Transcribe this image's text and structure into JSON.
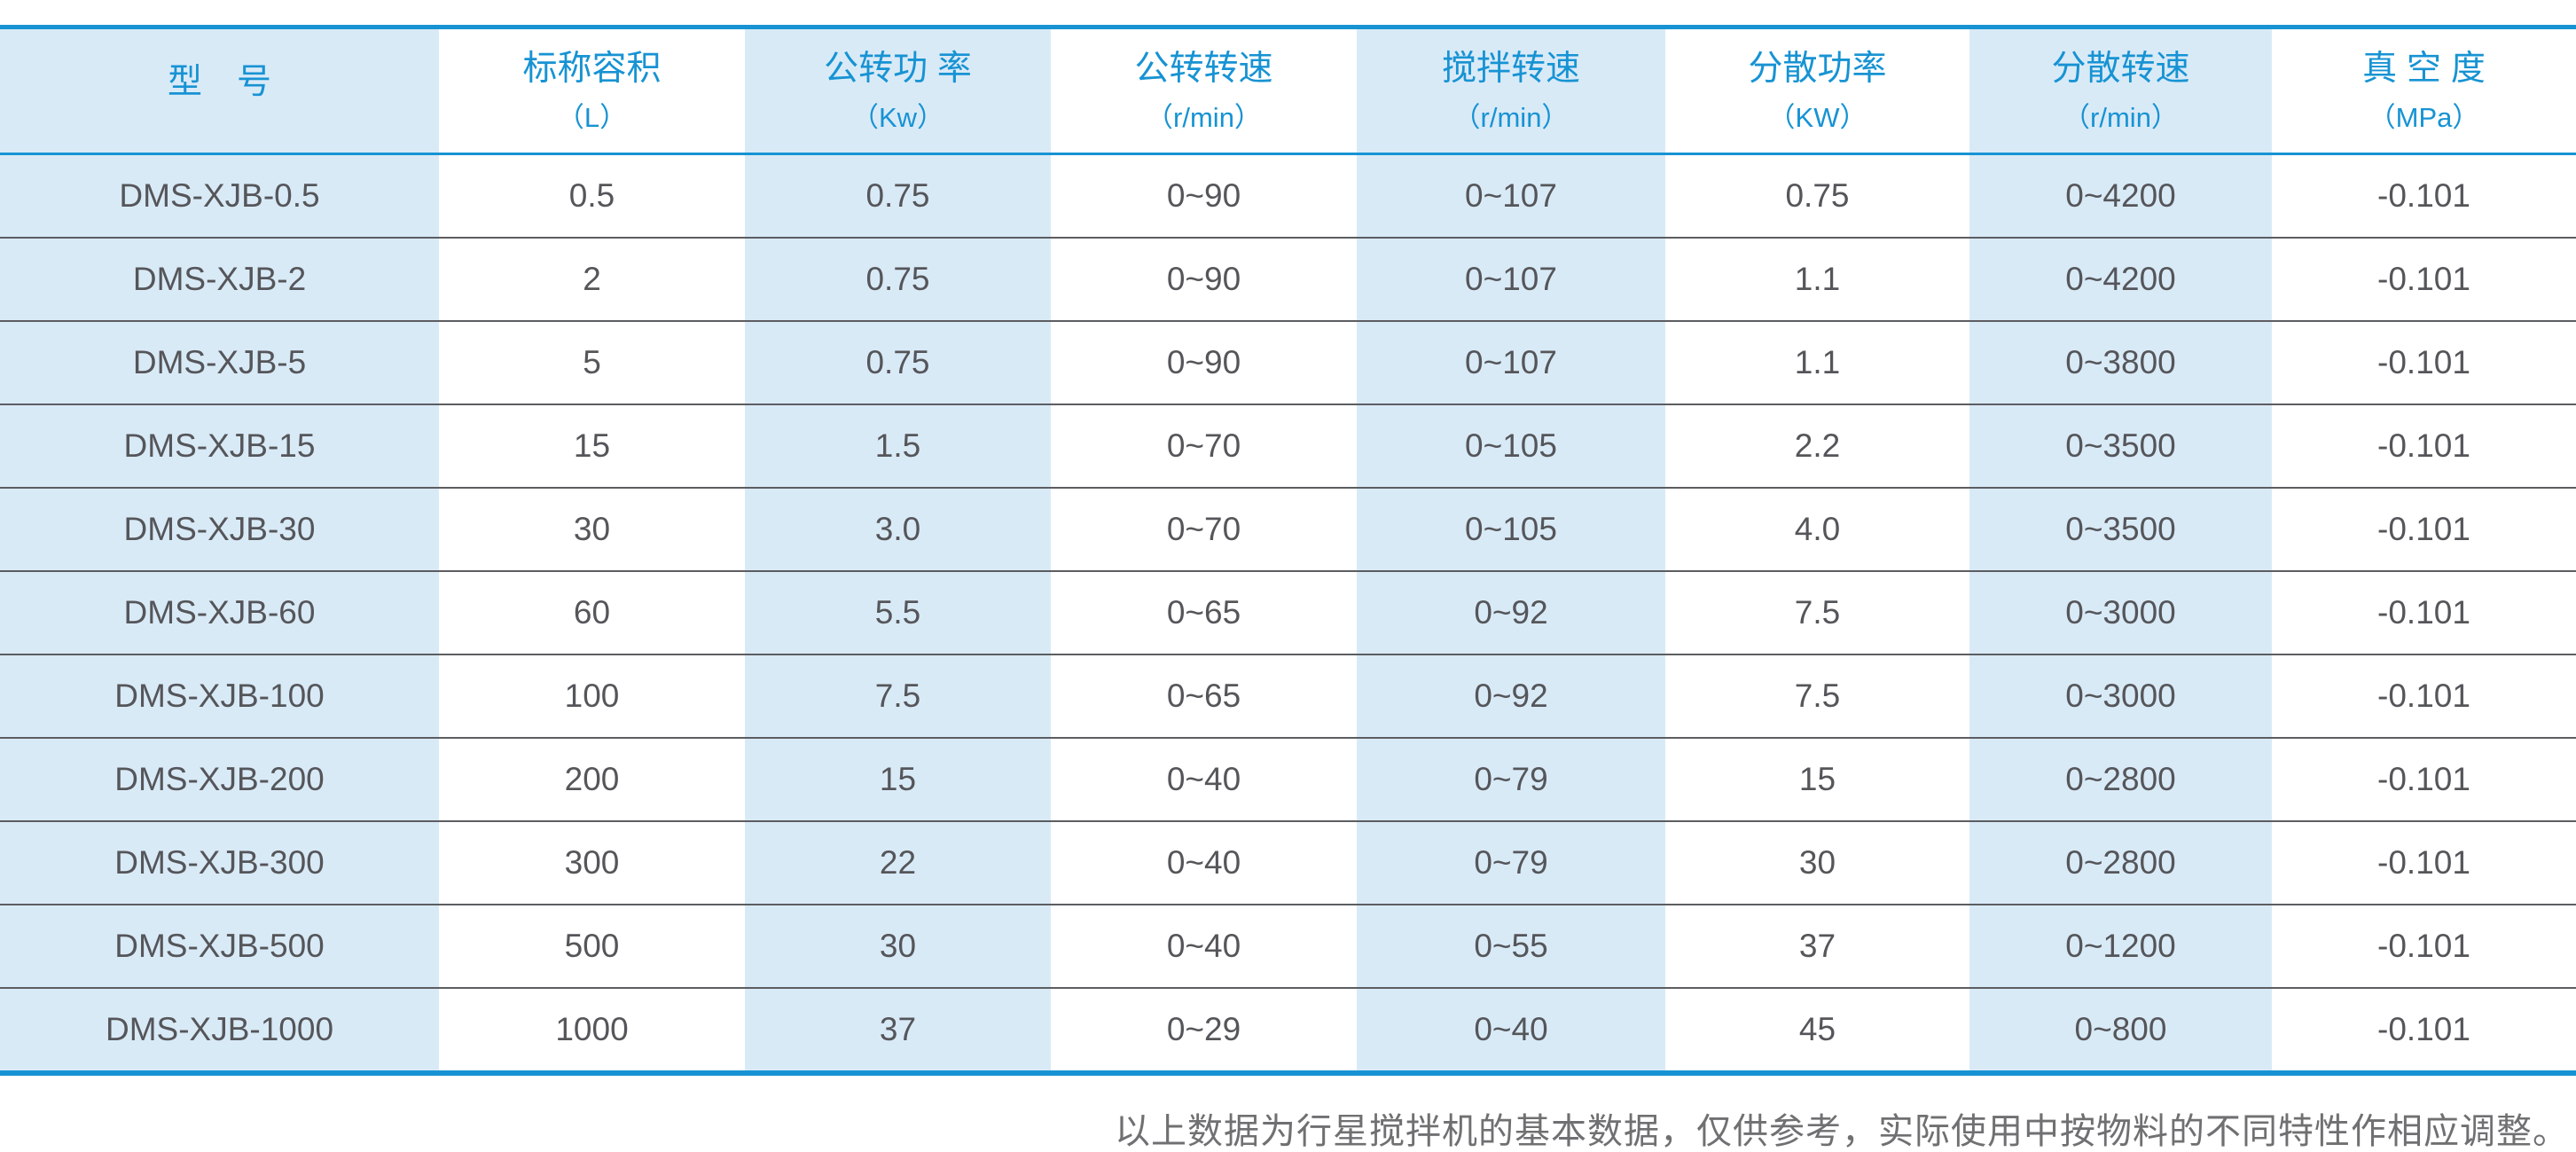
{
  "colors": {
    "accent": "#1793d3",
    "lightblue": "#d9eaf7",
    "celltext": "#55565a",
    "separator": "#5c5d60",
    "notecolor": "#707072"
  },
  "table": {
    "columns": [
      {
        "label": "型　号",
        "unit": ""
      },
      {
        "label": "标称容积",
        "unit": "（L）"
      },
      {
        "label": "公转功 率",
        "unit": "（Kw）"
      },
      {
        "label": "公转转速",
        "unit": "（r/min）"
      },
      {
        "label": "搅拌转速",
        "unit": "（r/min）"
      },
      {
        "label": "分散功率",
        "unit": "（KW）"
      },
      {
        "label": "分散转速",
        "unit": "（r/min）"
      },
      {
        "label": "真 空 度",
        "unit": "（MPa）"
      }
    ],
    "rows": [
      [
        "DMS-XJB-0.5",
        "0.5",
        "0.75",
        "0~90",
        "0~107",
        "0.75",
        "0~4200",
        "-0.101"
      ],
      [
        "DMS-XJB-2",
        "2",
        "0.75",
        "0~90",
        "0~107",
        "1.1",
        "0~4200",
        "-0.101"
      ],
      [
        "DMS-XJB-5",
        "5",
        "0.75",
        "0~90",
        "0~107",
        "1.1",
        "0~3800",
        "-0.101"
      ],
      [
        "DMS-XJB-15",
        "15",
        "1.5",
        "0~70",
        "0~105",
        "2.2",
        "0~3500",
        "-0.101"
      ],
      [
        "DMS-XJB-30",
        "30",
        "3.0",
        "0~70",
        "0~105",
        "4.0",
        "0~3500",
        "-0.101"
      ],
      [
        "DMS-XJB-60",
        "60",
        "5.5",
        "0~65",
        "0~92",
        "7.5",
        "0~3000",
        "-0.101"
      ],
      [
        "DMS-XJB-100",
        "100",
        "7.5",
        "0~65",
        "0~92",
        "7.5",
        "0~3000",
        "-0.101"
      ],
      [
        "DMS-XJB-200",
        "200",
        "15",
        "0~40",
        "0~79",
        "15",
        "0~2800",
        "-0.101"
      ],
      [
        "DMS-XJB-300",
        "300",
        "22",
        "0~40",
        "0~79",
        "30",
        "0~2800",
        "-0.101"
      ],
      [
        "DMS-XJB-500",
        "500",
        "30",
        "0~40",
        "0~55",
        "37",
        "0~1200",
        "-0.101"
      ],
      [
        "DMS-XJB-1000",
        "1000",
        "37",
        "0~29",
        "0~40",
        "45",
        "0~800",
        "-0.101"
      ]
    ]
  },
  "footnote": "以上数据为行星搅拌机的基本数据，仅供参考，实际使用中按物料的不同特性作相应调整。"
}
